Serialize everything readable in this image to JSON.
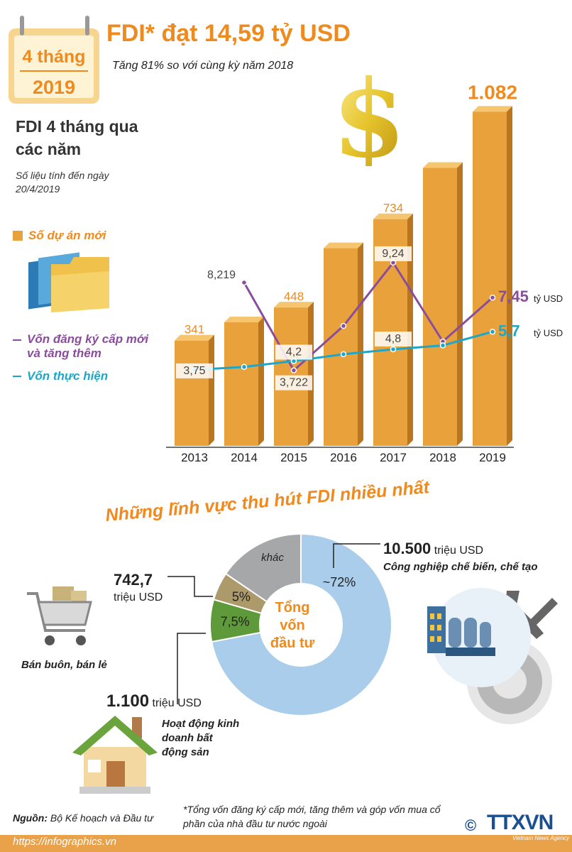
{
  "header": {
    "calendar_month": "4 tháng",
    "calendar_year": "2019",
    "title": "FDI* đạt 14,59 tỷ USD",
    "subtitle": "Tăng 81% so với cùng kỳ năm 2018"
  },
  "section_title": "FDI 4 tháng qua các năm",
  "note": "Số liệu tính đến ngày 20/4/2019",
  "legend": {
    "projects": "Số dự án mới",
    "registered": "Vốn đăng ký cấp mới và tăng thêm",
    "realized": "Vốn thực hiện"
  },
  "colors": {
    "bar": "#e9a23b",
    "registered_line": "#8a4d9c",
    "realized_line": "#1fa6c7",
    "accent": "#ef8a1f",
    "donut_main": "#a9cdea",
    "donut_other": "#a6a7a9",
    "donut_retail": "#ad9a6b",
    "donut_realestate": "#5f9a3a"
  },
  "chart_data": [
    {
      "type": "bar",
      "categories": [
        "2013",
        "2014",
        "2015",
        "2016",
        "2017",
        "2018",
        "2019"
      ],
      "series": [
        {
          "name": "Số dự án mới",
          "values": [
            341,
            400,
            448,
            640,
            734,
            900,
            1082
          ],
          "labels": [
            "341",
            "",
            "448",
            "",
            "734",
            "",
            "1.082"
          ]
        },
        {
          "name": "Vốn đăng ký cấp mới và tăng thêm",
          "values": [
            null,
            8.219,
            3.722,
            6.0,
            9.24,
            5.2,
            7.45
          ],
          "labels": [
            "",
            "8,219",
            "3,722",
            "",
            "9,24",
            "",
            "7,45"
          ]
        },
        {
          "name": "Vốn thực hiện",
          "values": [
            3.75,
            3.9,
            4.2,
            4.55,
            4.8,
            5.0,
            5.7
          ],
          "labels": [
            "3,75",
            "",
            "4,2",
            "",
            "4,8",
            "",
            "5,7"
          ]
        }
      ],
      "unit_label": "tỷ USD"
    },
    {
      "type": "pie",
      "center_label": "Tổng vốn đầu tư",
      "slices": [
        {
          "name": "Công nghiệp chế biến, chế tạo",
          "value": 72,
          "label": "~72%"
        },
        {
          "name": "Kinh doanh bất động sản",
          "value": 7.5,
          "label": "7,5%"
        },
        {
          "name": "Bán buôn, bán lẻ",
          "value": 5,
          "label": "5%"
        },
        {
          "name": "khác",
          "value": 15.5,
          "label": "khác"
        }
      ]
    }
  ],
  "sectors": {
    "title": "Những lĩnh vực thu hút FDI nhiều nhất",
    "manufacturing": {
      "value": "10.500",
      "unit": "triệu USD",
      "label": "Công nghiệp chế biến, chế tạo"
    },
    "retail": {
      "value": "742,7",
      "unit": "triệu USD",
      "label": "Bán buôn, bán lẻ"
    },
    "realestate": {
      "value": "1.100",
      "unit": "triệu USD",
      "label": "Hoạt động kinh doanh bất động sản"
    }
  },
  "footer": {
    "source_label": "Nguồn:",
    "source": "Bộ Kế hoạch và Đầu tư",
    "footnote": "*Tổng vốn đăng ký cấp mới, tăng thêm và góp vốn mua cổ phần của nhà đầu tư nước ngoài",
    "url": "https://infographics.vn",
    "logo": "TTXVN",
    "logo_sub": "Vietnam News Agency",
    "copyright": "©"
  }
}
